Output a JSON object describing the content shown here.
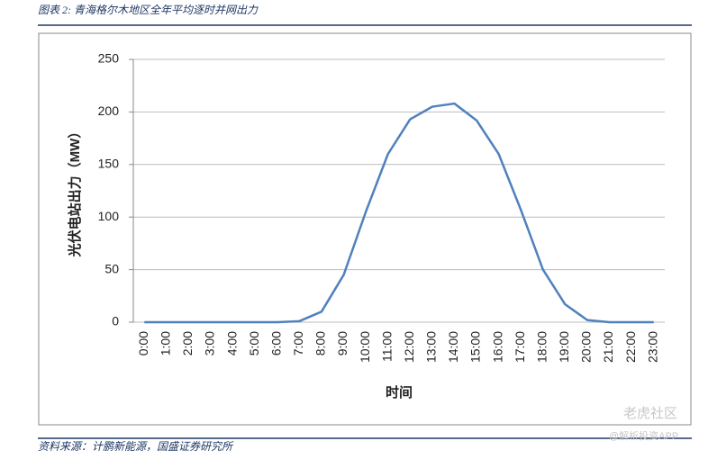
{
  "header": {
    "title": "图表 2: 青海格尔木地区全年平均逐时并网出力"
  },
  "chart_data": {
    "type": "line",
    "x_label": "时间",
    "y_label": "光伏电站出力（MW）",
    "categories": [
      "0:00",
      "1:00",
      "2:00",
      "3:00",
      "4:00",
      "5:00",
      "6:00",
      "7:00",
      "8:00",
      "9:00",
      "10:00",
      "11:00",
      "12:00",
      "13:00",
      "14:00",
      "15:00",
      "16:00",
      "17:00",
      "18:00",
      "19:00",
      "20:00",
      "21:00",
      "22:00",
      "23:00"
    ],
    "values": [
      0,
      0,
      0,
      0,
      0,
      0,
      0,
      1,
      10,
      45,
      105,
      160,
      193,
      205,
      208,
      192,
      160,
      107,
      50,
      17,
      2,
      0,
      0,
      0
    ],
    "color": "#4f81bd",
    "ylim": [
      0,
      250
    ],
    "yticks": [
      0,
      50,
      100,
      150,
      200,
      250
    ],
    "grid": true
  },
  "footer": {
    "source": "资料来源：计鹏新能源，国盛证券研究所"
  },
  "watermark": {
    "brand": "老虎社区",
    "handle": "@解析投资APP"
  }
}
